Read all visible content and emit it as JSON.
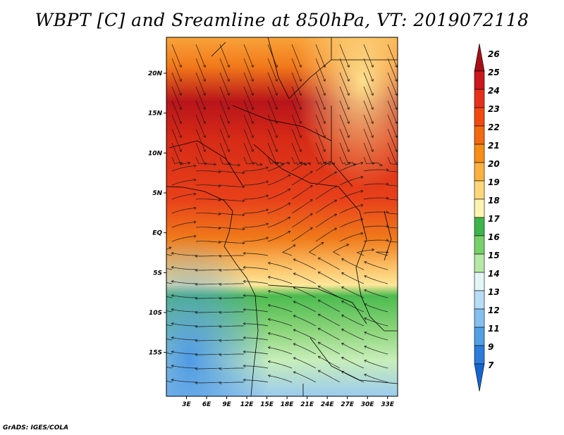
{
  "title": "WBPT [C] and Sreamline at 850hPa, VT: 2019072118",
  "credit": "GrADS: IGES/COLA",
  "map": {
    "lon_range": [
      0,
      34.5
    ],
    "lat_range": [
      -20.5,
      24.5
    ],
    "x_tick_labels": [
      "3E",
      "6E",
      "9E",
      "12E",
      "15E",
      "18E",
      "21E",
      "24E",
      "27E",
      "30E",
      "33E"
    ],
    "x_tick_values": [
      3,
      6,
      9,
      12,
      15,
      18,
      21,
      24,
      27,
      30,
      33
    ],
    "y_tick_labels": [
      "20N",
      "15N",
      "10N",
      "5N",
      "EQ",
      "5S",
      "10S",
      "15S"
    ],
    "y_tick_values": [
      20,
      15,
      10,
      5,
      0,
      -5,
      -10,
      -15
    ]
  },
  "colorbar": {
    "labels": [
      "26",
      "25",
      "24",
      "23",
      "22",
      "21",
      "20",
      "19",
      "18",
      "17",
      "16",
      "15",
      "14",
      "13",
      "12",
      "11",
      "9",
      "7"
    ],
    "colors": [
      "#a50f15",
      "#cb181d",
      "#e6301a",
      "#f04a10",
      "#f36a0f",
      "#f78d14",
      "#fab13e",
      "#fdd67c",
      "#fdf3b0",
      "#3cb54a",
      "#78d06a",
      "#b6e8a6",
      "#e2f6f6",
      "#b7dcf6",
      "#84bff0",
      "#519fe6",
      "#2b7cdb",
      "#1565d1"
    ]
  }
}
